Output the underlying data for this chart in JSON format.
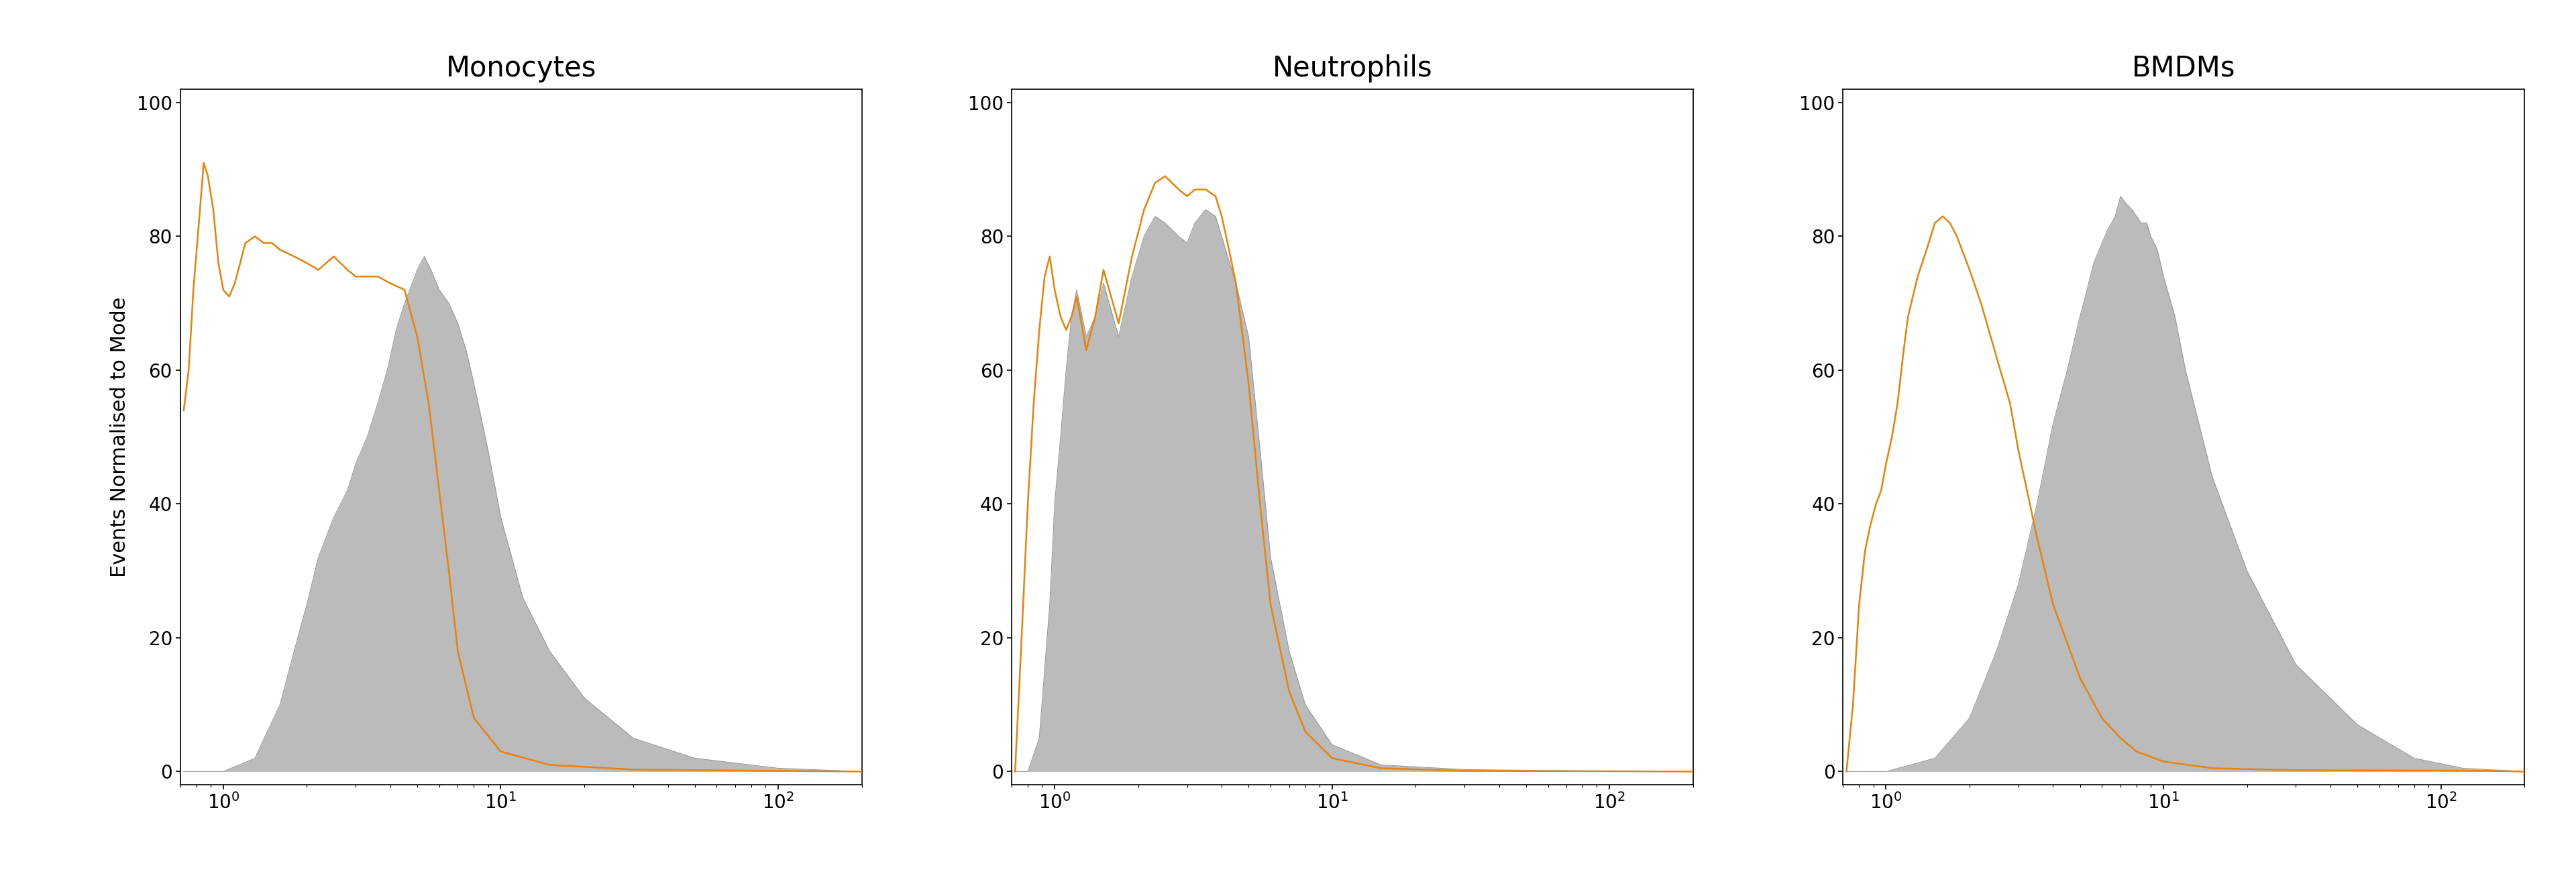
{
  "titles": [
    "Monocytes",
    "Neutrophils",
    "BMDMs"
  ],
  "ylabel": "Events Normalised to Mode",
  "xlim_log": [
    0.7,
    200
  ],
  "ylim": [
    -2,
    102
  ],
  "yticks": [
    0,
    20,
    40,
    60,
    80,
    100
  ],
  "orange_color": "#E8820C",
  "gray_color": "#BBBBBB",
  "gray_edge_color": "#999999",
  "background_color": "#FFFFFF",
  "title_fontsize": 30,
  "label_fontsize": 22,
  "tick_fontsize": 20,
  "line_width": 1.8,
  "mono_orange_x": [
    0.72,
    0.75,
    0.78,
    0.82,
    0.85,
    0.88,
    0.92,
    0.96,
    1.0,
    1.05,
    1.1,
    1.15,
    1.2,
    1.3,
    1.4,
    1.5,
    1.6,
    1.8,
    2.0,
    2.2,
    2.5,
    2.8,
    3.0,
    3.3,
    3.6,
    4.0,
    4.5,
    5.0,
    5.5,
    6.0,
    6.5,
    7.0,
    8.0,
    10.0,
    15.0,
    30.0,
    100.0,
    200.0
  ],
  "mono_orange_y": [
    54,
    60,
    72,
    83,
    91,
    89,
    84,
    76,
    72,
    71,
    73,
    76,
    79,
    80,
    79,
    79,
    78,
    77,
    76,
    75,
    77,
    75,
    74,
    74,
    74,
    73,
    72,
    65,
    55,
    42,
    30,
    18,
    8,
    3,
    1,
    0.3,
    0.1,
    0
  ],
  "mono_gray_x": [
    0.72,
    1.0,
    1.3,
    1.6,
    1.8,
    2.0,
    2.2,
    2.5,
    2.8,
    3.0,
    3.3,
    3.6,
    3.9,
    4.2,
    4.5,
    4.8,
    5.0,
    5.3,
    5.6,
    6.0,
    6.5,
    7.0,
    7.5,
    8.0,
    9.0,
    10.0,
    12.0,
    15.0,
    20.0,
    30.0,
    50.0,
    100.0,
    200.0
  ],
  "mono_gray_y": [
    0,
    0,
    2,
    10,
    18,
    25,
    32,
    38,
    42,
    46,
    50,
    55,
    60,
    66,
    70,
    73,
    75,
    77,
    75,
    72,
    70,
    67,
    63,
    58,
    48,
    38,
    26,
    18,
    11,
    5,
    2,
    0.5,
    0
  ],
  "neut_orange_x": [
    0.72,
    0.76,
    0.8,
    0.84,
    0.88,
    0.92,
    0.96,
    1.0,
    1.05,
    1.1,
    1.15,
    1.2,
    1.3,
    1.4,
    1.5,
    1.7,
    1.9,
    2.1,
    2.3,
    2.5,
    2.8,
    3.0,
    3.2,
    3.5,
    3.8,
    4.0,
    4.2,
    4.5,
    5.0,
    5.5,
    6.0,
    7.0,
    8.0,
    10.0,
    15.0,
    30.0,
    100.0,
    200.0
  ],
  "neut_orange_y": [
    0,
    20,
    40,
    55,
    66,
    74,
    77,
    72,
    68,
    66,
    68,
    71,
    63,
    68,
    75,
    67,
    77,
    84,
    88,
    89,
    87,
    86,
    87,
    87,
    86,
    83,
    79,
    73,
    58,
    40,
    25,
    12,
    6,
    2,
    0.5,
    0.1,
    0.05,
    0
  ],
  "neut_gray_x": [
    0.72,
    0.8,
    0.88,
    0.96,
    1.0,
    1.05,
    1.1,
    1.15,
    1.2,
    1.3,
    1.4,
    1.5,
    1.7,
    1.9,
    2.1,
    2.3,
    2.5,
    2.8,
    3.0,
    3.2,
    3.5,
    3.8,
    4.0,
    4.2,
    4.5,
    5.0,
    5.5,
    6.0,
    7.0,
    8.0,
    10.0,
    15.0,
    30.0,
    100.0,
    200.0
  ],
  "neut_gray_y": [
    0,
    0,
    5,
    25,
    40,
    50,
    60,
    68,
    72,
    65,
    68,
    73,
    65,
    74,
    80,
    83,
    82,
    80,
    79,
    82,
    84,
    83,
    80,
    77,
    73,
    65,
    48,
    32,
    18,
    10,
    4,
    1,
    0.3,
    0.05,
    0
  ],
  "bmdm_orange_x": [
    0.72,
    0.76,
    0.8,
    0.84,
    0.88,
    0.92,
    0.96,
    1.0,
    1.05,
    1.1,
    1.15,
    1.2,
    1.3,
    1.4,
    1.5,
    1.6,
    1.7,
    1.8,
    2.0,
    2.2,
    2.5,
    2.8,
    3.0,
    3.5,
    4.0,
    5.0,
    6.0,
    7.0,
    8.0,
    10.0,
    15.0,
    30.0,
    100.0,
    150.0,
    200.0
  ],
  "bmdm_orange_y": [
    0,
    10,
    25,
    33,
    37,
    40,
    42,
    46,
    50,
    55,
    62,
    68,
    74,
    78,
    82,
    83,
    82,
    80,
    75,
    70,
    62,
    55,
    48,
    35,
    25,
    14,
    8,
    5,
    3,
    1.5,
    0.5,
    0.2,
    0.15,
    0.1,
    0
  ],
  "bmdm_gray_x": [
    0.72,
    1.0,
    1.5,
    2.0,
    2.5,
    3.0,
    3.5,
    4.0,
    4.5,
    5.0,
    5.3,
    5.6,
    6.0,
    6.3,
    6.7,
    7.0,
    7.3,
    7.7,
    8.0,
    8.3,
    8.7,
    9.0,
    9.5,
    10.0,
    11.0,
    12.0,
    15.0,
    20.0,
    30.0,
    50.0,
    80.0,
    120.0,
    200.0
  ],
  "bmdm_gray_y": [
    0,
    0,
    2,
    8,
    18,
    28,
    40,
    52,
    60,
    68,
    72,
    76,
    79,
    81,
    83,
    86,
    85,
    84,
    83,
    82,
    82,
    80,
    78,
    74,
    68,
    60,
    44,
    30,
    16,
    7,
    2,
    0.5,
    0
  ]
}
